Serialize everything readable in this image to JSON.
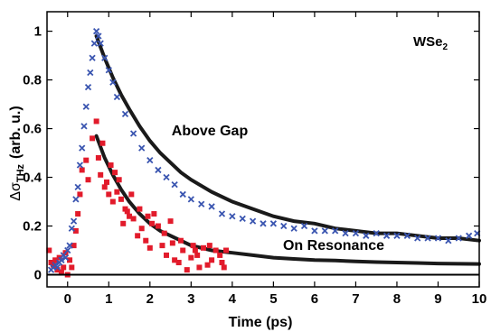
{
  "chart_data": {
    "type": "scatter",
    "title": "",
    "xlabel": "Time (ps)",
    "ylabel": "Δσ_THz (arb. u.)",
    "ylabel_parts": {
      "symbol": "Δσ",
      "subscript": "THz",
      "rest": "(arb. u.)"
    },
    "xlim": [
      -0.5,
      10
    ],
    "ylim": [
      -0.05,
      1.08
    ],
    "grid": false,
    "x_ticks": [
      0,
      1,
      2,
      3,
      4,
      5,
      6,
      7,
      8,
      9,
      10
    ],
    "y_ticks": [
      0,
      0.2,
      0.4,
      0.6,
      0.8,
      1
    ],
    "y_tick_labels": [
      "0",
      "0.2",
      "0.4",
      "0.6",
      "0.8",
      "1"
    ],
    "annotations": {
      "material": {
        "base": "WSe",
        "sub": "2"
      },
      "above_gap": "Above Gap",
      "on_resonance": "On Resonance"
    },
    "zero_line": 0,
    "colors": {
      "above_gap": "#3a55b0",
      "on_resonance": "#e21b2b",
      "fit": "#1a1a1a",
      "axes": "#000000"
    },
    "series": [
      {
        "marker": "x",
        "color": "#3a55b0",
        "x": [
          -0.4,
          -0.35,
          -0.3,
          -0.25,
          -0.2,
          -0.15,
          -0.1,
          -0.05,
          0.0,
          0.05,
          0.1,
          0.15,
          0.2,
          0.25,
          0.3,
          0.35,
          0.4,
          0.45,
          0.5,
          0.55,
          0.6,
          0.65,
          0.7,
          0.75,
          0.8,
          0.9,
          1.0,
          1.1,
          1.2,
          1.4,
          1.6,
          1.8,
          2.0,
          2.2,
          2.4,
          2.6,
          2.8,
          3.0,
          3.25,
          3.5,
          3.75,
          4.0,
          4.25,
          4.5,
          4.75,
          5.0,
          5.25,
          5.5,
          5.75,
          6.0,
          6.25,
          6.5,
          6.75,
          7.0,
          7.25,
          7.5,
          7.75,
          8.0,
          8.25,
          8.5,
          8.75,
          9.0,
          9.25,
          9.5,
          9.75,
          9.95
        ],
        "y": [
          0.02,
          0.03,
          0.04,
          0.03,
          0.05,
          0.06,
          0.08,
          0.07,
          0.1,
          0.12,
          0.19,
          0.22,
          0.31,
          0.36,
          0.45,
          0.52,
          0.61,
          0.69,
          0.77,
          0.83,
          0.89,
          0.95,
          1.0,
          0.98,
          0.95,
          0.89,
          0.84,
          0.79,
          0.73,
          0.66,
          0.58,
          0.52,
          0.47,
          0.43,
          0.4,
          0.37,
          0.33,
          0.31,
          0.29,
          0.28,
          0.25,
          0.24,
          0.23,
          0.22,
          0.21,
          0.21,
          0.2,
          0.19,
          0.2,
          0.18,
          0.18,
          0.18,
          0.17,
          0.17,
          0.16,
          0.17,
          0.16,
          0.16,
          0.16,
          0.15,
          0.15,
          0.15,
          0.14,
          0.15,
          0.16,
          0.17
        ]
      },
      {
        "marker": "square",
        "color": "#e21b2b",
        "x": [
          -0.45,
          -0.4,
          -0.35,
          -0.3,
          -0.25,
          -0.2,
          -0.15,
          -0.1,
          -0.05,
          0.0,
          0.05,
          0.1,
          0.15,
          0.2,
          0.25,
          0.3,
          0.35,
          0.45,
          0.5,
          0.6,
          0.7,
          0.75,
          0.8,
          0.85,
          0.9,
          0.95,
          1.0,
          1.05,
          1.1,
          1.2,
          1.25,
          1.3,
          1.35,
          1.4,
          1.45,
          1.5,
          1.6,
          1.7,
          1.75,
          1.8,
          1.9,
          2.0,
          2.05,
          2.1,
          2.2,
          2.3,
          2.4,
          2.5,
          2.55,
          2.6,
          2.7,
          2.8,
          2.9,
          3.0,
          3.05,
          3.1,
          3.2,
          3.3,
          3.4,
          3.5,
          3.6,
          3.7,
          3.8,
          3.85,
          1.15,
          1.55,
          1.95,
          2.35,
          2.75,
          3.15,
          3.45,
          3.75
        ],
        "y": [
          0.1,
          0.05,
          0.04,
          0.06,
          0.02,
          0.07,
          0.01,
          0.03,
          0.09,
          0.0,
          0.06,
          0.03,
          0.12,
          0.18,
          0.25,
          0.33,
          0.43,
          0.47,
          0.39,
          0.56,
          0.63,
          0.48,
          0.41,
          0.54,
          0.36,
          0.38,
          0.33,
          0.45,
          0.3,
          0.34,
          0.39,
          0.31,
          0.21,
          0.27,
          0.26,
          0.24,
          0.23,
          0.16,
          0.27,
          0.19,
          0.14,
          0.11,
          0.21,
          0.25,
          0.2,
          0.12,
          0.08,
          0.22,
          0.13,
          0.06,
          0.05,
          0.1,
          0.02,
          0.07,
          0.12,
          0.1,
          0.03,
          0.11,
          0.04,
          0.06,
          0.1,
          0.08,
          0.03,
          0.1,
          0.42,
          0.33,
          0.24,
          0.17,
          0.14,
          0.08,
          0.12,
          0.05
        ]
      }
    ],
    "fits": [
      {
        "x": [
          0.7,
          0.9,
          1.1,
          1.3,
          1.5,
          1.75,
          2.0,
          2.25,
          2.5,
          2.75,
          3.0,
          3.5,
          4.0,
          4.5,
          5.0,
          5.5,
          6.0,
          6.5,
          7.0,
          7.5,
          8.0,
          8.5,
          9.0,
          9.5,
          10.0
        ],
        "y": [
          0.98,
          0.89,
          0.81,
          0.74,
          0.68,
          0.61,
          0.55,
          0.5,
          0.46,
          0.42,
          0.39,
          0.34,
          0.3,
          0.27,
          0.24,
          0.22,
          0.21,
          0.19,
          0.18,
          0.17,
          0.17,
          0.16,
          0.15,
          0.15,
          0.14
        ]
      },
      {
        "x": [
          0.7,
          0.9,
          1.1,
          1.3,
          1.5,
          1.75,
          2.0,
          2.25,
          2.5,
          2.75,
          3.0,
          3.5,
          4.0,
          4.5,
          5.0,
          5.5,
          6.0,
          6.5,
          7.0,
          7.5,
          8.0,
          8.5,
          9.0,
          9.5,
          10.0
        ],
        "y": [
          0.57,
          0.48,
          0.41,
          0.35,
          0.3,
          0.25,
          0.21,
          0.18,
          0.16,
          0.14,
          0.12,
          0.1,
          0.09,
          0.08,
          0.07,
          0.065,
          0.06,
          0.058,
          0.055,
          0.052,
          0.05,
          0.048,
          0.046,
          0.045,
          0.044
        ]
      }
    ]
  }
}
